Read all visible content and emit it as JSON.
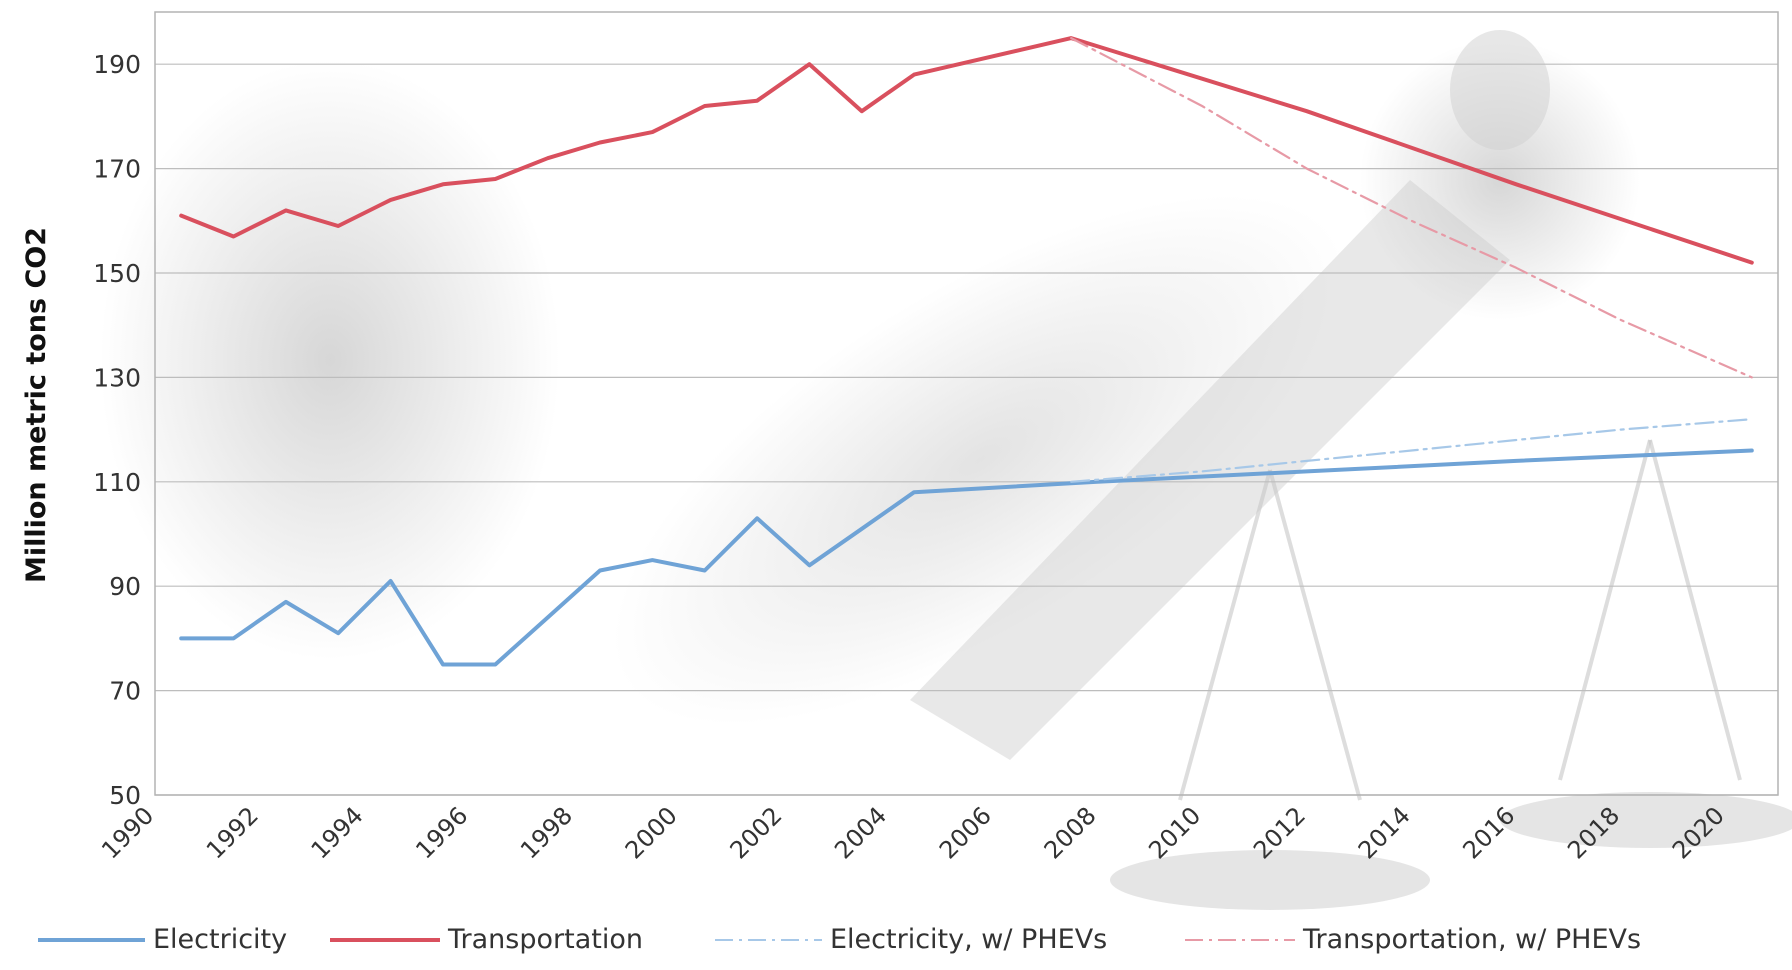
{
  "chart_data": {
    "type": "line",
    "title": "",
    "ylabel": "Million metric tons CO2",
    "xlabel": "",
    "ylim": [
      50,
      200
    ],
    "xlim": [
      1990,
      2021
    ],
    "y_ticks": [
      50,
      70,
      90,
      110,
      130,
      150,
      170,
      190
    ],
    "x_ticks": [
      1990,
      1992,
      1994,
      1996,
      1998,
      2000,
      2002,
      2004,
      2006,
      2008,
      2010,
      2012,
      2014,
      2016,
      2018,
      2020
    ],
    "grid": "horizontal",
    "legend_position": "bottom",
    "series": [
      {
        "name": "Electricity",
        "color": "#6fa3d6",
        "style": "solid",
        "x": [
          1990.5,
          1991.5,
          1992.5,
          1993.5,
          1994.5,
          1995.5,
          1996.5,
          1997.5,
          1998.5,
          1999.5,
          2000.5,
          2001.5,
          2002.5,
          2003.5,
          2004.5,
          2008,
          2012,
          2016,
          2020.5
        ],
        "y": [
          80,
          80,
          87,
          81,
          91,
          75,
          75,
          84,
          93,
          95,
          93,
          103,
          94,
          101,
          108,
          110,
          112,
          114,
          116
        ]
      },
      {
        "name": "Transportation",
        "color": "#d9505e",
        "style": "solid",
        "x": [
          1990.5,
          1991.5,
          1992.5,
          1993.5,
          1994.5,
          1995.5,
          1996.5,
          1997.5,
          1998.5,
          1999.5,
          2000.5,
          2001.5,
          2002.5,
          2003.5,
          2004.5,
          2007.5,
          2012,
          2016,
          2020.5
        ],
        "y": [
          161,
          157,
          162,
          159,
          164,
          167,
          168,
          172,
          175,
          177,
          182,
          183,
          190,
          181,
          188,
          195,
          181,
          167,
          152
        ]
      },
      {
        "name": "Electricity, w/ PHEVs",
        "color": "#a7c8e8",
        "style": "dashdot",
        "x": [
          2007.5,
          2010,
          2012,
          2014,
          2016,
          2018,
          2020.5
        ],
        "y": [
          110,
          112,
          114,
          116,
          118,
          120,
          122
        ]
      },
      {
        "name": "Transportation, w/ PHEVs",
        "color": "#e79aa6",
        "style": "dashdot",
        "x": [
          2007.5,
          2010,
          2012,
          2014,
          2016,
          2018,
          2020.5
        ],
        "y": [
          195,
          182,
          170,
          160,
          151,
          141,
          130
        ]
      }
    ]
  }
}
